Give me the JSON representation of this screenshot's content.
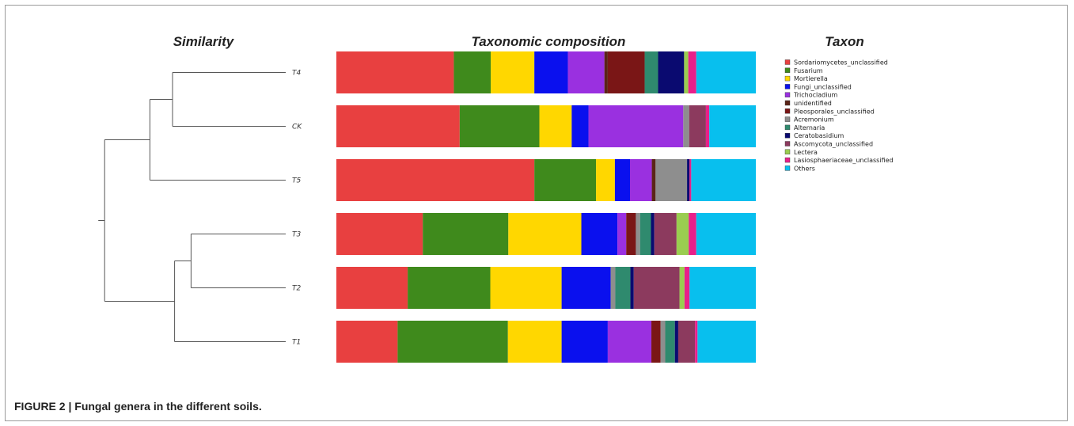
{
  "caption": {
    "figure_label": "FIGURE 2 | ",
    "text": "Fungal genera in the different soils."
  },
  "colors": [
    "#e84040",
    "#3f8a1c",
    "#ffd700",
    "#0a10ee",
    "#9a30e0",
    "#5a2418",
    "#7a1616",
    "#8e8e8e",
    "#2f8a6e",
    "#0a0a70",
    "#8c3a5e",
    "#9acd50",
    "#e8208a",
    "#08bfee"
  ],
  "chart_data": {
    "type": "bar",
    "orientation": "horizontal",
    "stacked": true,
    "normalized_to": 100,
    "panel_titles": {
      "dendrogram": "Similarity",
      "bars": "Taxonomic composition",
      "legend": "Taxon"
    },
    "taxa": [
      "Sordariomycetes_unclassified",
      "Fusarium",
      "Mortierella",
      "Fungi_unclassified",
      "Trichocladium",
      "unidentified",
      "Pleosporales_unclassified",
      "Acremonium",
      "Alternaria",
      "Ceratobasidium",
      "Ascomycota_unclassified",
      "Lectera",
      "Lasiosphaeriaceae_unclassified",
      "Others"
    ],
    "categories": [
      "T4",
      "CK",
      "T5",
      "T3",
      "T2",
      "T1"
    ],
    "series": [
      {
        "name": "Sordariomycetes_unclassified",
        "values": [
          28.0,
          29.4,
          47.2,
          20.6,
          17.0,
          14.6
        ]
      },
      {
        "name": "Fusarium",
        "values": [
          8.8,
          19.0,
          14.7,
          20.4,
          19.7,
          26.3
        ]
      },
      {
        "name": "Mortierella",
        "values": [
          10.4,
          7.7,
          4.5,
          17.4,
          17.0,
          12.8
        ]
      },
      {
        "name": "Fungi_unclassified",
        "values": [
          8.0,
          4.0,
          3.6,
          8.6,
          11.7,
          11.0
        ]
      },
      {
        "name": "Trichocladium",
        "values": [
          8.7,
          22.6,
          5.2,
          2.1,
          0.0,
          10.4
        ]
      },
      {
        "name": "unidentified",
        "values": [
          0.8,
          0.0,
          0.9,
          0.0,
          0.0,
          0.0
        ]
      },
      {
        "name": "Pleosporales_unclassified",
        "values": [
          8.8,
          0.0,
          0.0,
          2.3,
          0.0,
          2.2
        ]
      },
      {
        "name": "Acremonium",
        "values": [
          0.0,
          1.4,
          7.5,
          1.0,
          1.1,
          1.1
        ]
      },
      {
        "name": "Alternaria",
        "values": [
          3.2,
          0.0,
          0.0,
          2.6,
          3.6,
          2.3
        ]
      },
      {
        "name": "Ceratobasidium",
        "values": [
          6.2,
          0.0,
          0.6,
          0.8,
          0.8,
          0.8
        ]
      },
      {
        "name": "Ascomycota_unclassified",
        "values": [
          0.0,
          4.0,
          0.0,
          5.3,
          10.9,
          4.0
        ]
      },
      {
        "name": "Lectera",
        "values": [
          1.0,
          0.0,
          0.0,
          2.9,
          1.2,
          0.0
        ]
      },
      {
        "name": "Lasiosphaeriaceae_unclassified",
        "values": [
          1.9,
          0.8,
          0.4,
          1.8,
          1.2,
          0.6
        ]
      },
      {
        "name": "Others",
        "values": [
          14.2,
          11.1,
          15.4,
          14.2,
          15.8,
          13.9
        ]
      }
    ],
    "dendrogram": {
      "leaves": [
        "T4",
        "CK",
        "T5",
        "T3",
        "T2",
        "T1"
      ],
      "merges": [
        {
          "left": "T4",
          "right": "CK",
          "height": 0.55
        },
        {
          "left": "T4+CK",
          "right": "T5",
          "height": 0.66
        },
        {
          "left": "T3",
          "right": "T2",
          "height": 0.46
        },
        {
          "left": "T3+T2",
          "right": "T1",
          "height": 0.54
        },
        {
          "left": "T4+CK+T5",
          "right": "T3+T2+T1",
          "height": 0.88
        }
      ]
    }
  }
}
